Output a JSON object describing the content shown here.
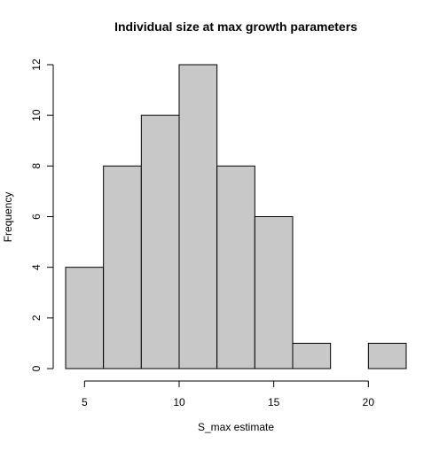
{
  "chart_data": {
    "type": "bar",
    "title": "Individual size at max growth parameters",
    "xlabel": "S_max estimate",
    "ylabel": "Frequency",
    "bins": [
      {
        "start": 4,
        "end": 6,
        "count": 4
      },
      {
        "start": 6,
        "end": 8,
        "count": 8
      },
      {
        "start": 8,
        "end": 10,
        "count": 10
      },
      {
        "start": 10,
        "end": 12,
        "count": 12
      },
      {
        "start": 12,
        "end": 14,
        "count": 8
      },
      {
        "start": 14,
        "end": 16,
        "count": 6
      },
      {
        "start": 16,
        "end": 18,
        "count": 1
      },
      {
        "start": 18,
        "end": 20,
        "count": 0
      },
      {
        "start": 20,
        "end": 22,
        "count": 1
      }
    ],
    "xticks": [
      5,
      10,
      15,
      20
    ],
    "yticks": [
      0,
      2,
      4,
      6,
      8,
      10,
      12
    ],
    "xlim": [
      4,
      22
    ],
    "ylim": [
      0,
      12
    ],
    "bar_color": "#c8c8c8",
    "edge_color": "#000000",
    "grid": false,
    "legend": "none"
  }
}
